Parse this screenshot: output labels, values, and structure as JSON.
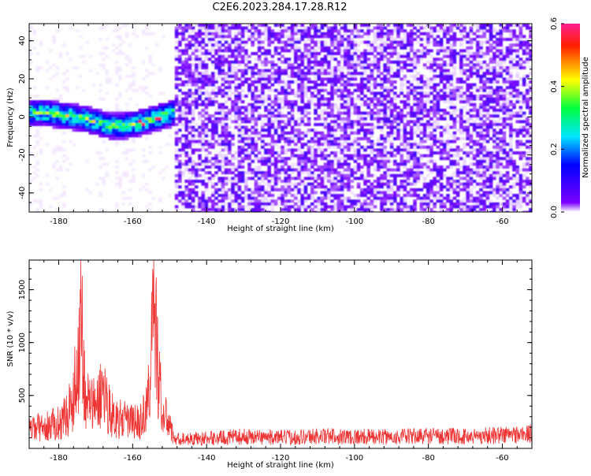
{
  "title": "C2E6.2023.284.17.28.R12",
  "chart_data": [
    {
      "type": "heatmap",
      "xlabel": "Height of straight line (km)",
      "ylabel": "Frequency (Hz)",
      "xlim": [
        -188,
        -52
      ],
      "ylim": [
        -50,
        49
      ],
      "xticks": [
        -180,
        -160,
        -140,
        -120,
        -100,
        -80,
        -60
      ],
      "yticks": [
        -40,
        -20,
        0,
        20,
        40
      ],
      "signal_track": {
        "x_start": -188,
        "x_end": -149,
        "frequency_hz": [
          3,
          3,
          2,
          1,
          0,
          -2,
          -4,
          -4,
          -3,
          -1,
          1,
          3
        ]
      },
      "noise_onset_x": -149,
      "colorbar": {
        "label": "Normalized spectral amplitude",
        "range": [
          0.0,
          0.6
        ],
        "ticks": [
          "0.0",
          "0.2",
          "0.4",
          "0.6"
        ],
        "colors": [
          "#ffffff",
          "#7b00ff",
          "#0000ff",
          "#00e5ff",
          "#00ff40",
          "#ffff00",
          "#ff2000",
          "#ff2090"
        ]
      }
    },
    {
      "type": "line",
      "xlabel": "Height of straight line (km)",
      "ylabel": "SNR (10 * v/v)",
      "xlim": [
        -188,
        -52
      ],
      "ylim": [
        0,
        1780
      ],
      "xticks": [
        -180,
        -160,
        -140,
        -120,
        -100,
        -80,
        -60
      ],
      "yticks": [
        500,
        1000,
        1500
      ],
      "color": "#ee3333",
      "series": [
        {
          "x": [
            -188,
            -186,
            -184,
            -182,
            -180,
            -178,
            -176,
            -175,
            -174,
            -173,
            -172,
            -170,
            -168,
            -166,
            -164,
            -162,
            -160,
            -158,
            -156,
            -155,
            -154,
            -153,
            -152,
            -150,
            -149,
            -148,
            -140,
            -130,
            -120,
            -110,
            -100,
            -90,
            -80,
            -70,
            -60,
            -52
          ],
          "y": [
            220,
            250,
            240,
            280,
            300,
            380,
            600,
            950,
            1780,
            700,
            560,
            480,
            720,
            420,
            350,
            330,
            320,
            300,
            500,
            1150,
            1580,
            900,
            420,
            300,
            120,
            110,
            120,
            140,
            130,
            145,
            140,
            135,
            150,
            140,
            160,
            170
          ]
        }
      ]
    }
  ]
}
